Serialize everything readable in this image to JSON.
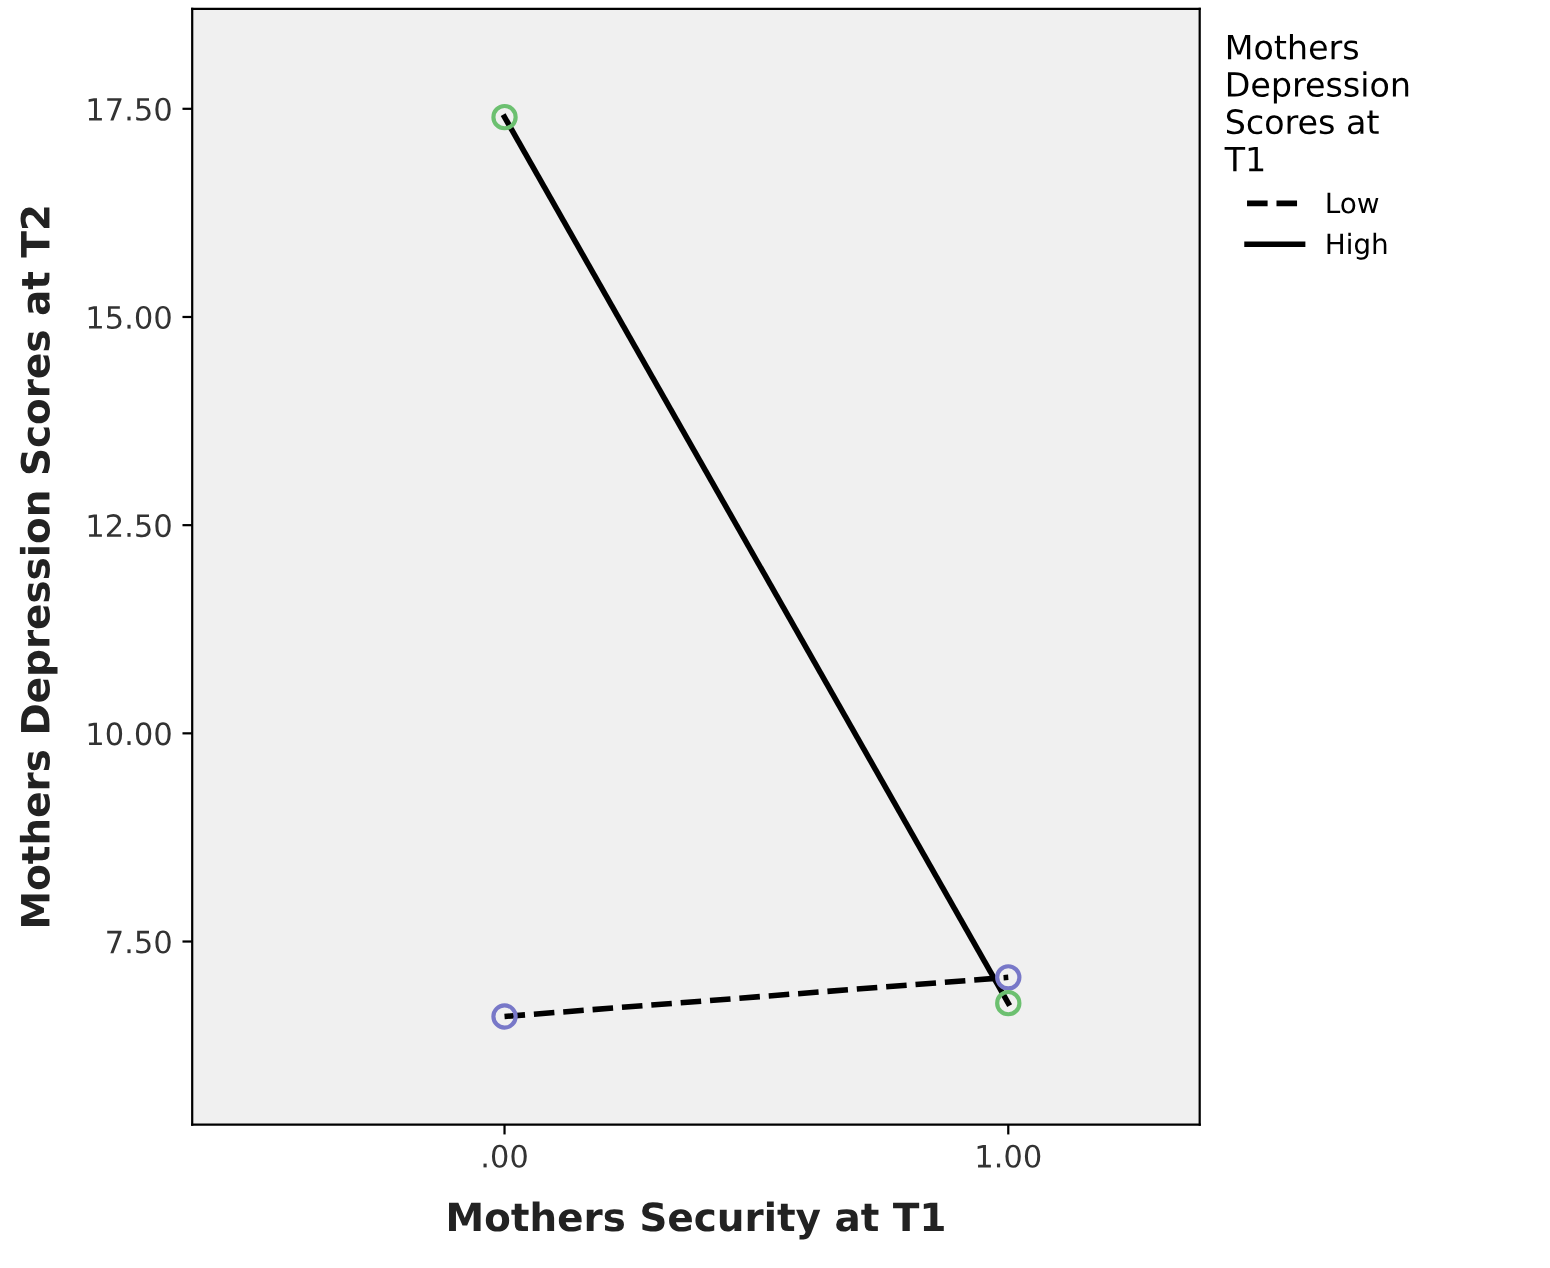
{
  "chart_data": {
    "type": "line",
    "xlabel": "Mothers Security at T1",
    "ylabel": "Mothers Depression Scores at T2",
    "legend_title": "Mothers\nDepression\nScores at\nT1",
    "legend": "right",
    "x": [
      0,
      1
    ],
    "series": [
      {
        "name": "Low",
        "color": "#7878c8",
        "values": [
          6.6,
          7.07
        ],
        "line_style": "dashed"
      },
      {
        "name": "High",
        "color": "#6cc070",
        "values": [
          17.4,
          6.76
        ],
        "line_style": "solid"
      }
    ],
    "marker": "circle",
    "xlim": [
      -0.62,
      1.38
    ],
    "xticks": [
      {
        "value": 0,
        "label": ".00"
      },
      {
        "value": 1,
        "label": "1.00"
      }
    ],
    "ylim": [
      5.3,
      18.7
    ],
    "yticks": [
      {
        "value": 7.5,
        "label": "7.50"
      },
      {
        "value": 10,
        "label": "10.00"
      },
      {
        "value": 12.5,
        "label": "12.50"
      },
      {
        "value": 15,
        "label": "15.00"
      },
      {
        "value": 17.5,
        "label": "17.50"
      }
    ],
    "grid": false
  }
}
